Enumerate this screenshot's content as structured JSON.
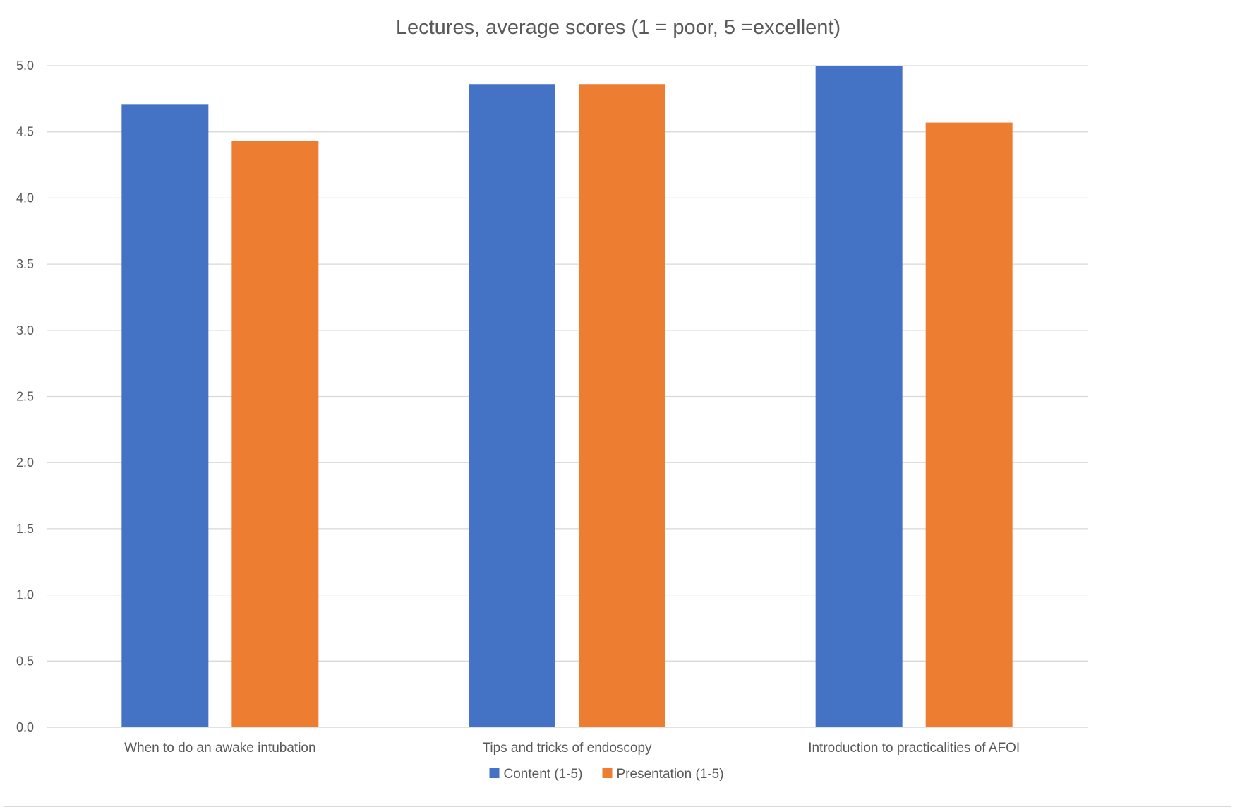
{
  "chart_data": {
    "type": "bar",
    "title": "Lectures, average scores (1 = poor, 5 =excellent)",
    "xlabel": "",
    "ylabel": "",
    "categories": [
      "When to do an awake intubation",
      "Tips and tricks of endoscopy",
      "Introduction to practicalities of AFOI"
    ],
    "series": [
      {
        "name": "Content (1-5)",
        "values": [
          4.71,
          4.86,
          5.0
        ],
        "color": "#4472C4"
      },
      {
        "name": "Presentation (1-5)",
        "values": [
          4.43,
          4.86,
          4.57
        ],
        "color": "#ED7D31"
      }
    ],
    "ylim": [
      0,
      5
    ],
    "yticks": [
      "0.0",
      "0.5",
      "1.0",
      "1.5",
      "2.0",
      "2.5",
      "3.0",
      "3.5",
      "4.0",
      "4.5",
      "5.0"
    ],
    "grid": true,
    "legend_position": "bottom"
  }
}
